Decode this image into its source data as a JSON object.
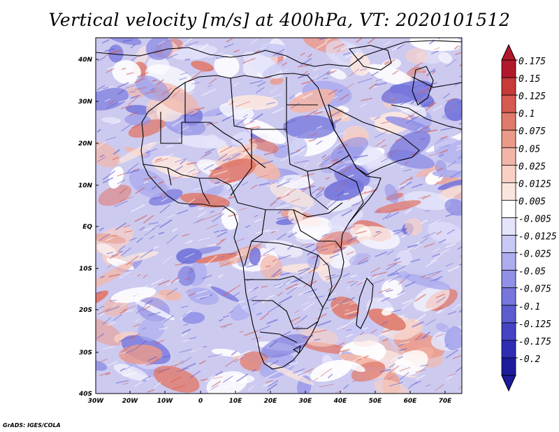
{
  "title": "Vertical velocity [m/s] at 400hPa, VT: 2020101512",
  "credit": "GrADS: IGES/COLA",
  "axes": {
    "lat_labels": [
      "40N",
      "30N",
      "20N",
      "10N",
      "EQ",
      "10S",
      "20S",
      "30S",
      "40S"
    ],
    "lon_labels": [
      "30W",
      "20W",
      "10W",
      "0",
      "10E",
      "20E",
      "30E",
      "40E",
      "50E",
      "60E",
      "70E"
    ]
  },
  "colorbar": {
    "levels": [
      "0.175",
      "0.15",
      "0.125",
      "0.1",
      "0.075",
      "0.05",
      "0.025",
      "0.0125",
      "0.005",
      "-0.005",
      "-0.0125",
      "-0.025",
      "-0.05",
      "-0.075",
      "-0.1",
      "-0.125",
      "-0.175",
      "-0.2"
    ],
    "colors": [
      "#b2182b",
      "#c63a3a",
      "#d65a52",
      "#e07a6c",
      "#eb9a8a",
      "#f2b6a8",
      "#f8d0c4",
      "#fbe6de",
      "#ffffff",
      "#e4e4fb",
      "#c8c8f4",
      "#acacee",
      "#9090e6",
      "#7676dc",
      "#5c5cd0",
      "#4444c4",
      "#2e2eb4",
      "#1c1c9c"
    ]
  },
  "colors": {
    "background_ocean": "#c9c6ef",
    "positive": "#e98c86",
    "negative": "#8c8ce2",
    "border": "#000000"
  }
}
